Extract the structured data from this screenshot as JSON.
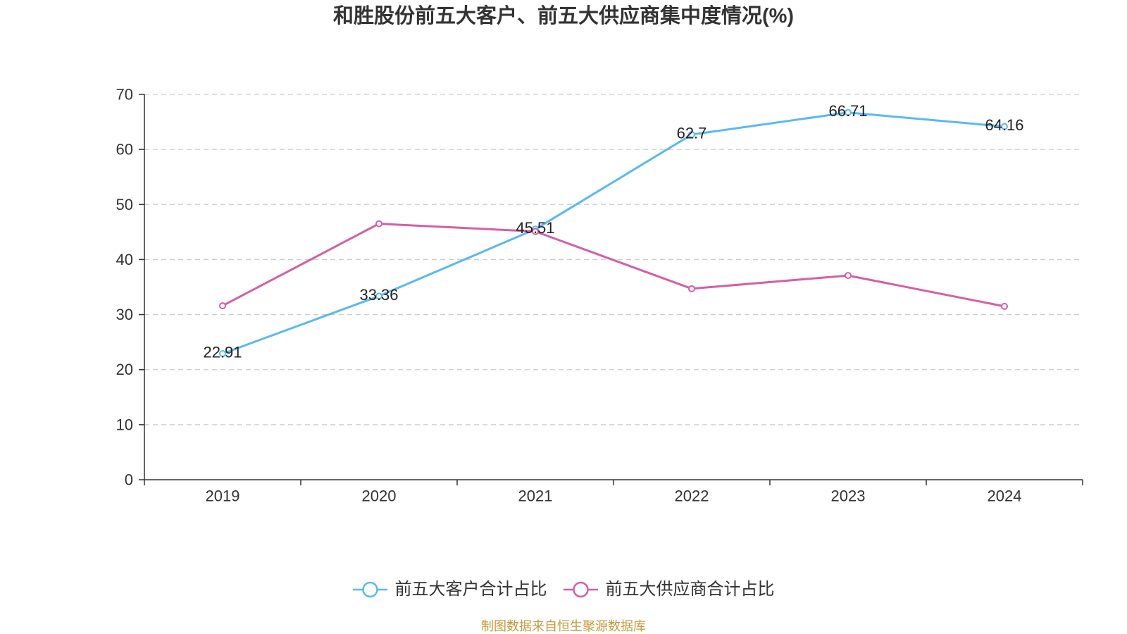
{
  "chart_data": {
    "type": "line",
    "title": "和胜股份前五大客户、前五大供应商集中度情况(%)",
    "categories": [
      "2019",
      "2020",
      "2021",
      "2022",
      "2023",
      "2024"
    ],
    "ylim": [
      0,
      70
    ],
    "yticks": [
      0,
      10,
      20,
      30,
      40,
      50,
      60,
      70
    ],
    "grid": true,
    "legend": "bottom-center",
    "series": [
      {
        "name": "前五大客户合计占比",
        "color": "#5ab9ef",
        "show_labels": true,
        "values": [
          22.91,
          33.36,
          45.51,
          62.7,
          66.71,
          64.16
        ]
      },
      {
        "name": "前五大供应商合计占比",
        "color": "#d45fa6",
        "show_labels": false,
        "values": [
          31.6,
          46.5,
          45.1,
          34.7,
          37.1,
          31.5
        ]
      }
    ]
  },
  "footer": "制图数据来自恒生聚源数据库"
}
